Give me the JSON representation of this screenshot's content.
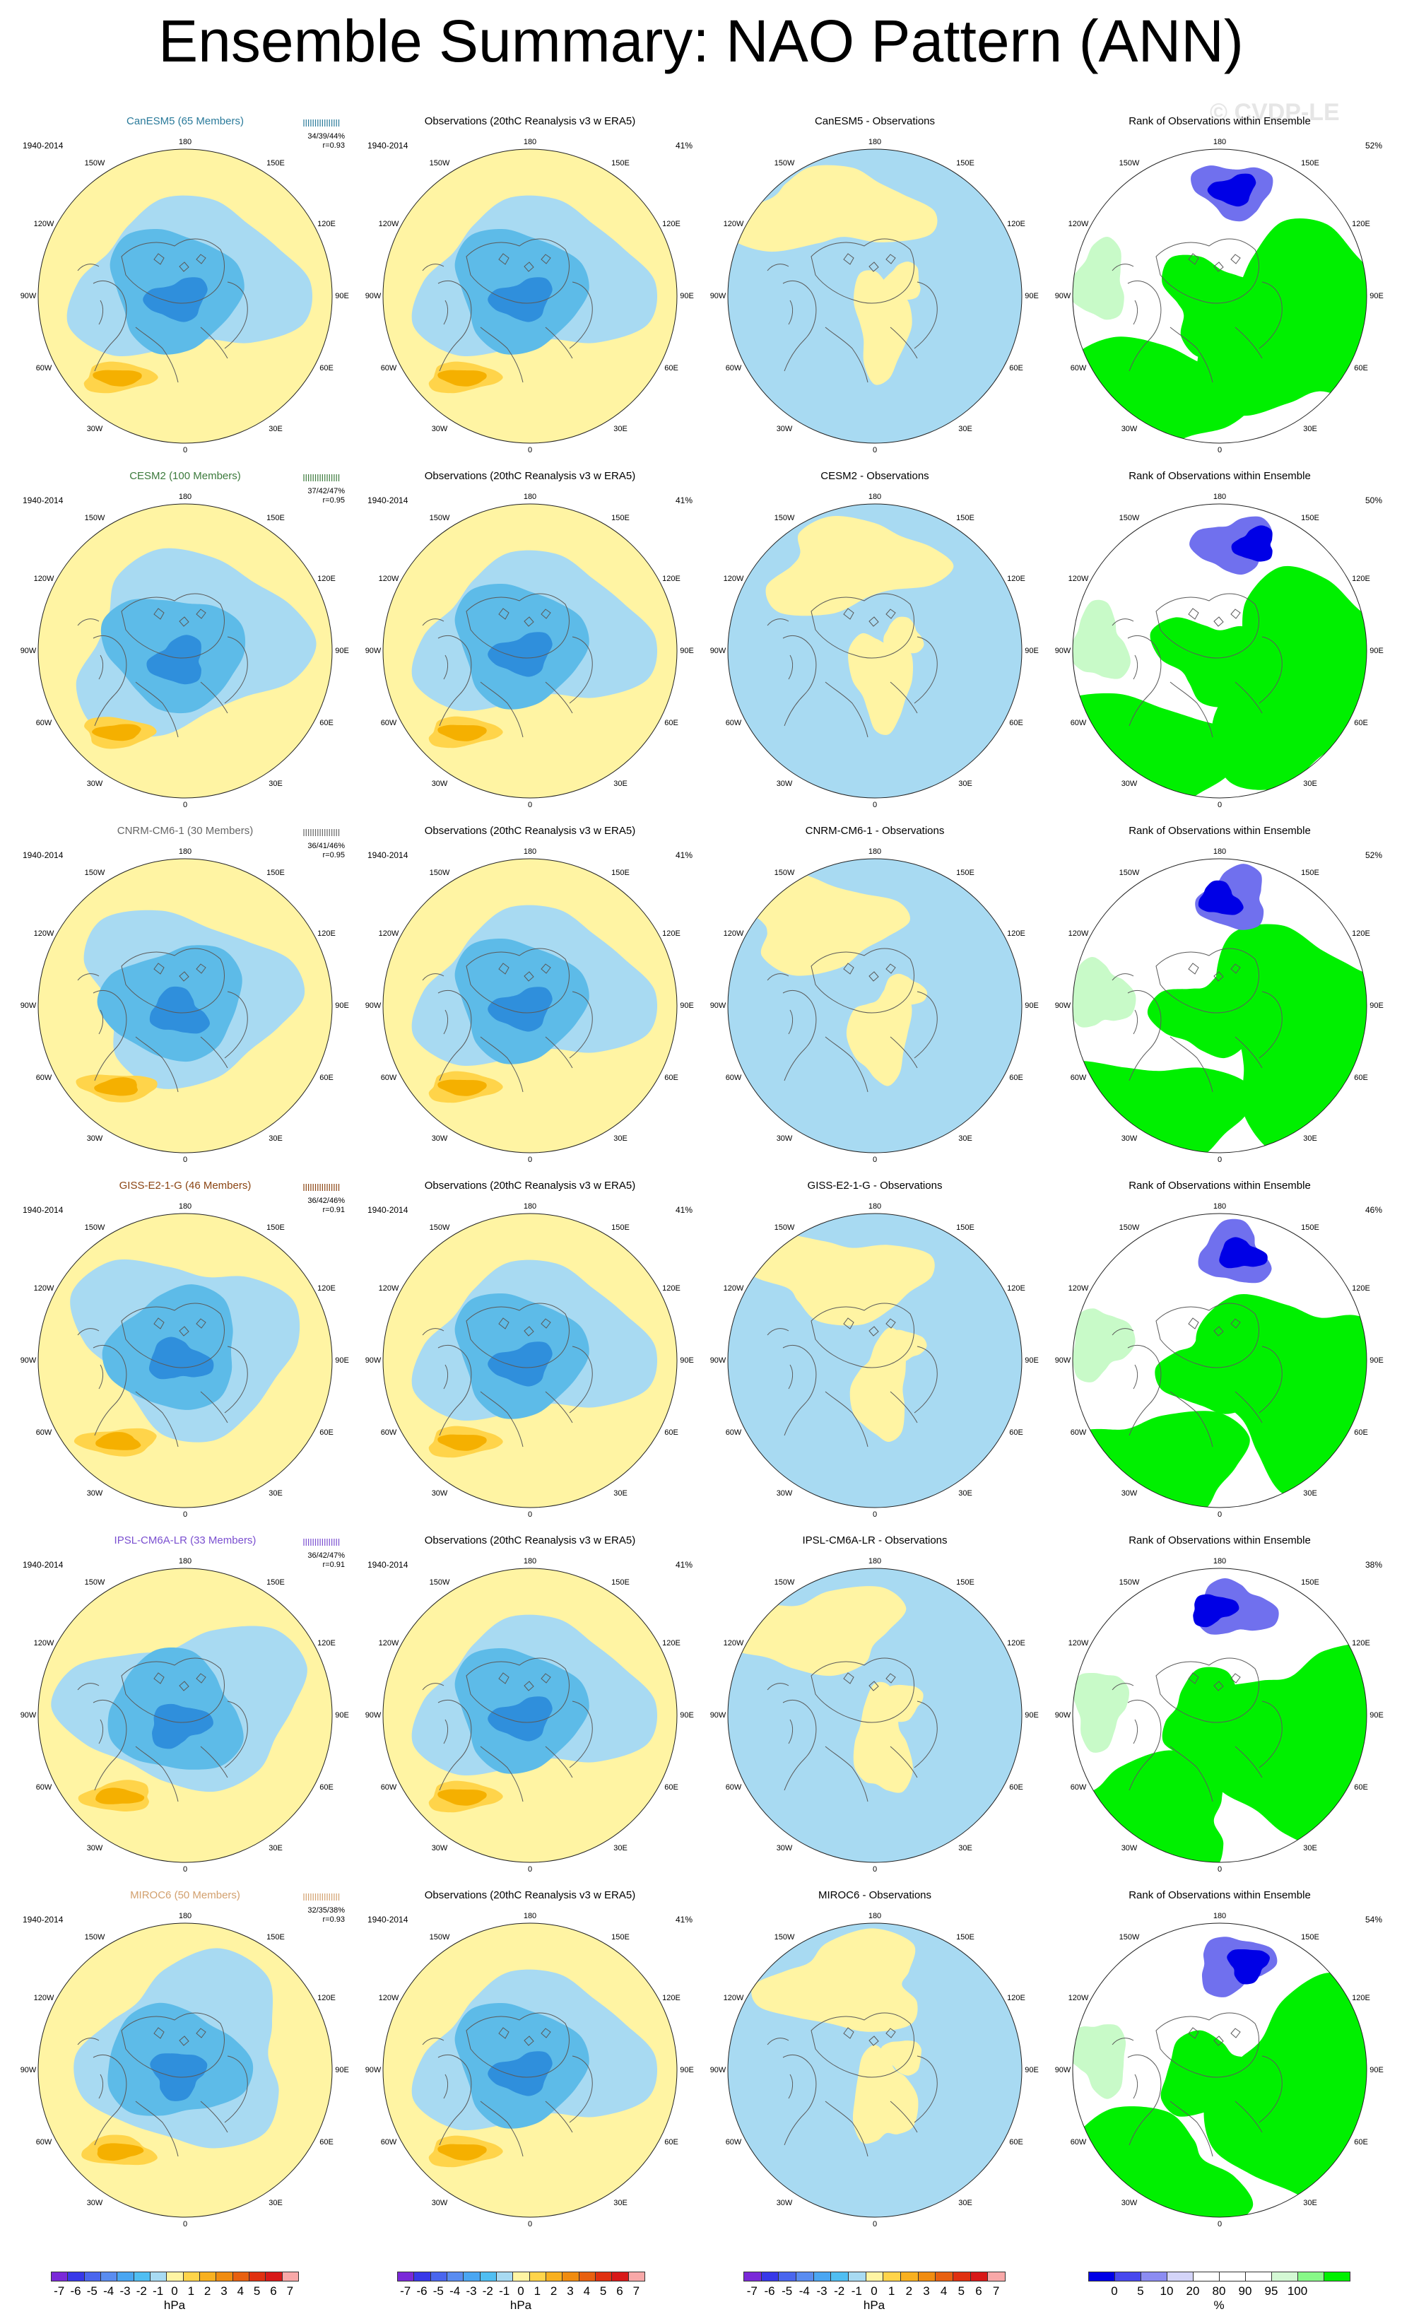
{
  "title": "Ensemble Summary: NAO Pattern (ANN)",
  "watermark": "© CVDP-LE",
  "map_labels": {
    "top": "180",
    "bottom": "0",
    "ul": "150W",
    "ur": "150E",
    "ml": "120W",
    "mr": "120E",
    "cl": "90W",
    "cr": "90E",
    "ll": "60W",
    "lr": "60E",
    "bl": "30W",
    "br": "30E"
  },
  "colors": {
    "land": "#5a5a5a",
    "warm": "#fff4a3",
    "cool": "#a8daf2",
    "neg_mid": "#5dbbe8",
    "neg_strong": "#2f8fdc",
    "pos_mid": "#ffd44a",
    "pos_strong": "#f5b000",
    "rank_green": "#00f000",
    "rank_blue": "#0000e6",
    "rank_lightblue": "#7070ee",
    "rank_lightgreen": "#c8fac8"
  },
  "rows": [
    {
      "model": {
        "title": "CanESM5 (65 Members)",
        "title_color": "#2a7a9a",
        "period": "1940-2014",
        "stat": "34/39/44%",
        "r": "r=0.93"
      },
      "obs": {
        "title": "Observations (20thC Reanalysis v3 w ERA5)",
        "period": "1940-2014",
        "pct": "41%"
      },
      "diff": {
        "title": "CanESM5 - Observations"
      },
      "rank": {
        "title": "Rank of Observations within Ensemble",
        "pct": "52%"
      }
    },
    {
      "model": {
        "title": "CESM2 (100 Members)",
        "title_color": "#3c7a3c",
        "period": "1940-2014",
        "stat": "37/42/47%",
        "r": "r=0.95"
      },
      "obs": {
        "title": "Observations (20thC Reanalysis v3 w ERA5)",
        "period": "1940-2014",
        "pct": "41%"
      },
      "diff": {
        "title": "CESM2 - Observations"
      },
      "rank": {
        "title": "Rank of Observations within Ensemble",
        "pct": "50%"
      }
    },
    {
      "model": {
        "title": "CNRM-CM6-1 (30 Members)",
        "title_color": "#666666",
        "period": "1940-2014",
        "stat": "36/41/46%",
        "r": "r=0.95"
      },
      "obs": {
        "title": "Observations (20thC Reanalysis v3 w ERA5)",
        "period": "1940-2014",
        "pct": "41%"
      },
      "diff": {
        "title": "CNRM-CM6-1 - Observations"
      },
      "rank": {
        "title": "Rank of Observations within Ensemble",
        "pct": "52%"
      }
    },
    {
      "model": {
        "title": "GISS-E2-1-G (46 Members)",
        "title_color": "#8b4513",
        "period": "1940-2014",
        "stat": "36/42/46%",
        "r": "r=0.91"
      },
      "obs": {
        "title": "Observations (20thC Reanalysis v3 w ERA5)",
        "period": "1940-2014",
        "pct": "41%"
      },
      "diff": {
        "title": "GISS-E2-1-G - Observations"
      },
      "rank": {
        "title": "Rank of Observations within Ensemble",
        "pct": "46%"
      }
    },
    {
      "model": {
        "title": "IPSL-CM6A-LR (33 Members)",
        "title_color": "#7a4fd0",
        "period": "1940-2014",
        "stat": "36/42/47%",
        "r": "r=0.91"
      },
      "obs": {
        "title": "Observations (20thC Reanalysis v3 w ERA5)",
        "period": "1940-2014",
        "pct": "41%"
      },
      "diff": {
        "title": "IPSL-CM6A-LR - Observations"
      },
      "rank": {
        "title": "Rank of Observations within Ensemble",
        "pct": "38%"
      }
    },
    {
      "model": {
        "title": "MIROC6 (50 Members)",
        "title_color": "#d2a06e",
        "period": "1940-2014",
        "stat": "32/35/38%",
        "r": "r=0.93"
      },
      "obs": {
        "title": "Observations (20thC Reanalysis v3 w ERA5)",
        "period": "1940-2014",
        "pct": "41%"
      },
      "diff": {
        "title": "MIROC6 - Observations"
      },
      "rank": {
        "title": "Rank of Observations within Ensemble",
        "pct": "54%"
      }
    }
  ],
  "colorbars": {
    "hpa": {
      "colors": [
        "#7a28d8",
        "#3838e8",
        "#4a66ee",
        "#5a8cf0",
        "#4aa6f2",
        "#50bef2",
        "#a8daf2",
        "#fff4a3",
        "#ffd44a",
        "#f8b020",
        "#f08c10",
        "#e86010",
        "#e03010",
        "#d81818",
        "#f8a8a8"
      ],
      "ticks": [
        "-7",
        "-6",
        "-5",
        "-4",
        "-3",
        "-2",
        "-1",
        "0",
        "1",
        "2",
        "3",
        "4",
        "5",
        "6",
        "7"
      ],
      "unit": "hPa"
    },
    "rank": {
      "colors": [
        "#0000e6",
        "#4848ee",
        "#8c8cf2",
        "#d4d4f8",
        "#ffffff",
        "#ffffff",
        "#ffffff",
        "#d4f8d4",
        "#88f888",
        "#00f000"
      ],
      "ticks": [
        "0",
        "5",
        "10",
        "20",
        "80",
        "90",
        "95",
        "100"
      ],
      "unit": "%"
    }
  }
}
